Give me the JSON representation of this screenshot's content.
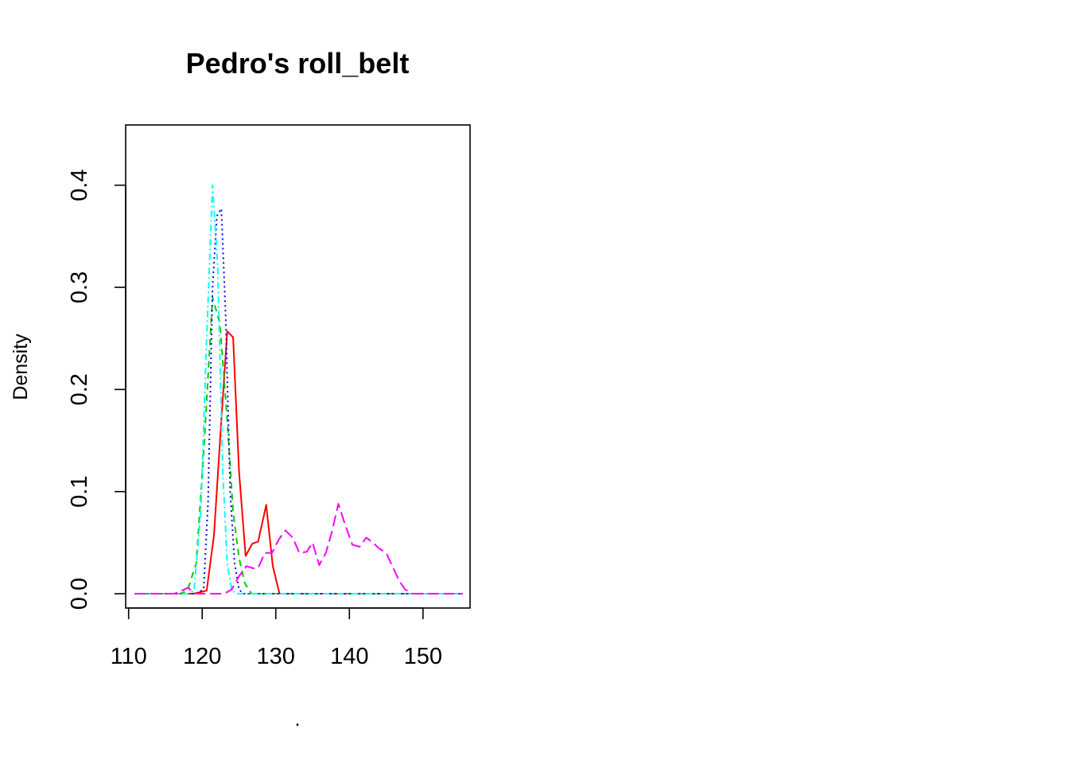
{
  "chart_data": {
    "type": "line",
    "title": "Pedro's roll_belt",
    "xlabel": ".",
    "ylabel": "Density",
    "xlim": [
      109.6,
      156.4
    ],
    "ylim": [
      -0.014,
      0.459
    ],
    "x_ticks": [
      110,
      120,
      130,
      140,
      150
    ],
    "y_ticks": [
      0.0,
      0.1,
      0.2,
      0.3,
      0.4
    ],
    "x_tick_labels": [
      "110",
      "120",
      "130",
      "140",
      "150"
    ],
    "y_tick_labels": [
      "0.0",
      "0.1",
      "0.2",
      "0.3",
      "0.4"
    ],
    "grid": false,
    "legend": false,
    "series": [
      {
        "color": "#FF0000",
        "dash": "solid",
        "points": [
          [
            110.8,
            0.0
          ],
          [
            118.8,
            0.0
          ],
          [
            120.6,
            0.003
          ],
          [
            121.6,
            0.057
          ],
          [
            122.6,
            0.17
          ],
          [
            123.4,
            0.257
          ],
          [
            124.2,
            0.251
          ],
          [
            125.0,
            0.12
          ],
          [
            125.9,
            0.037
          ],
          [
            126.8,
            0.049
          ],
          [
            127.6,
            0.051
          ],
          [
            128.7,
            0.087
          ],
          [
            129.6,
            0.027
          ],
          [
            130.5,
            0.0
          ],
          [
            155.4,
            0.0
          ]
        ]
      },
      {
        "color": "#00CD00",
        "dash": "dashed",
        "points": [
          [
            110.8,
            0.0
          ],
          [
            117.0,
            0.0
          ],
          [
            118.0,
            0.003
          ],
          [
            119.2,
            0.03
          ],
          [
            120.3,
            0.15
          ],
          [
            121.4,
            0.29
          ],
          [
            122.4,
            0.265
          ],
          [
            123.4,
            0.17
          ],
          [
            124.2,
            0.08
          ],
          [
            125.0,
            0.035
          ],
          [
            125.8,
            0.01
          ],
          [
            126.7,
            0.0
          ],
          [
            155.4,
            0.0
          ]
        ]
      },
      {
        "color": "#0000FF",
        "dash": "dotted",
        "points": [
          [
            110.8,
            0.0
          ],
          [
            119.4,
            0.0
          ],
          [
            120.2,
            0.005
          ],
          [
            120.8,
            0.09
          ],
          [
            121.4,
            0.3
          ],
          [
            122.0,
            0.37
          ],
          [
            122.6,
            0.377
          ],
          [
            123.2,
            0.27
          ],
          [
            123.8,
            0.1
          ],
          [
            124.4,
            0.03
          ],
          [
            125.0,
            0.004
          ],
          [
            125.6,
            0.0
          ],
          [
            155.4,
            0.0
          ]
        ]
      },
      {
        "color": "#00FFFF",
        "dash": "dotdash",
        "points": [
          [
            110.8,
            0.0
          ],
          [
            118.0,
            0.0
          ],
          [
            118.9,
            0.003
          ],
          [
            119.8,
            0.08
          ],
          [
            120.6,
            0.25
          ],
          [
            121.4,
            0.4
          ],
          [
            122.1,
            0.32
          ],
          [
            122.8,
            0.12
          ],
          [
            123.4,
            0.03
          ],
          [
            124.0,
            0.004
          ],
          [
            124.6,
            0.0
          ],
          [
            155.4,
            0.0
          ]
        ]
      },
      {
        "color": "#FF00FF",
        "dash": "longdash",
        "points": [
          [
            110.8,
            0.0
          ],
          [
            116.2,
            0.0
          ],
          [
            117.2,
            0.003
          ],
          [
            118.1,
            0.006
          ],
          [
            118.9,
            0.0
          ],
          [
            123.0,
            0.0
          ],
          [
            124.0,
            0.004
          ],
          [
            125.0,
            0.017
          ],
          [
            126.0,
            0.027
          ],
          [
            126.9,
            0.025
          ],
          [
            127.6,
            0.025
          ],
          [
            128.5,
            0.04
          ],
          [
            129.5,
            0.04
          ],
          [
            130.4,
            0.053
          ],
          [
            131.3,
            0.062
          ],
          [
            132.3,
            0.055
          ],
          [
            133.2,
            0.04
          ],
          [
            134.2,
            0.041
          ],
          [
            135.0,
            0.05
          ],
          [
            135.9,
            0.028
          ],
          [
            136.8,
            0.04
          ],
          [
            137.6,
            0.06
          ],
          [
            138.5,
            0.088
          ],
          [
            139.5,
            0.066
          ],
          [
            140.4,
            0.048
          ],
          [
            141.4,
            0.046
          ],
          [
            142.3,
            0.055
          ],
          [
            143.2,
            0.05
          ],
          [
            144.1,
            0.044
          ],
          [
            145.0,
            0.04
          ],
          [
            145.9,
            0.026
          ],
          [
            146.8,
            0.012
          ],
          [
            147.6,
            0.004
          ],
          [
            148.6,
            0.0
          ],
          [
            155.4,
            0.0
          ]
        ]
      }
    ]
  }
}
